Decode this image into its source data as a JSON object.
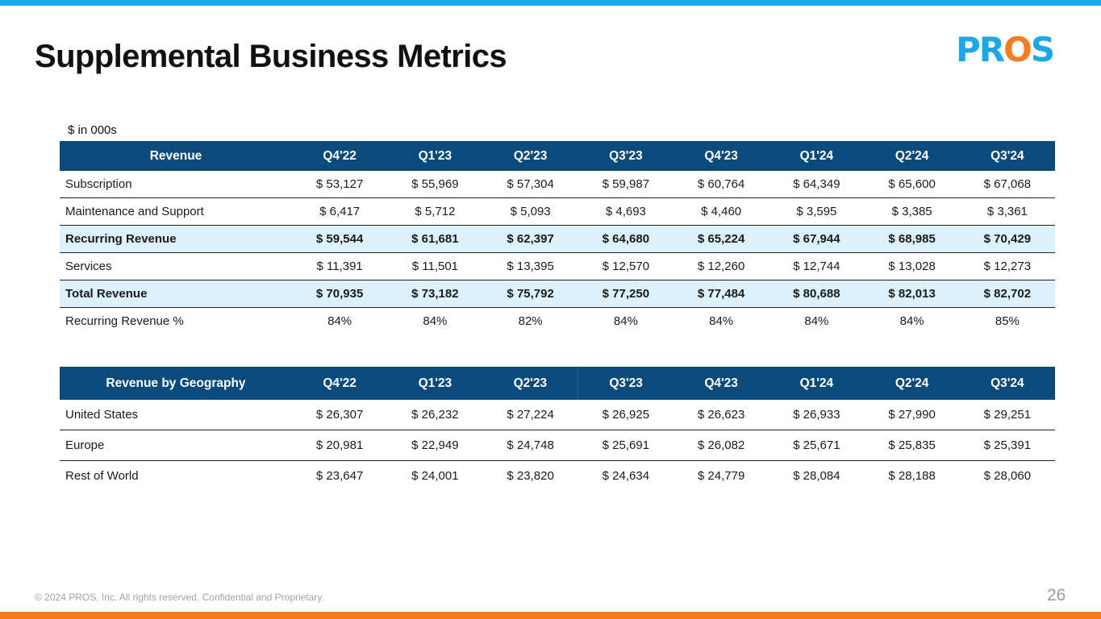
{
  "title": "Supplemental Business Metrics",
  "logo": {
    "text_a": "PR",
    "text_b": "O",
    "text_c": "S"
  },
  "units_note": "$ in 000s",
  "colors": {
    "header_bg": "#0b4a7b",
    "highlight_bg": "#dcf1fc",
    "accent_blue": "#1ea7e6",
    "accent_orange": "#f47b20"
  },
  "revenue_table": {
    "headers": [
      "Revenue",
      "Q4'22",
      "Q1'23",
      "Q2'23",
      "Q3'23",
      "Q4'23",
      "Q1'24",
      "Q2'24",
      "Q3'24"
    ],
    "rows": [
      {
        "cells": [
          "Subscription",
          "$ 53,127",
          "$ 55,969",
          "$ 57,304",
          "$ 59,987",
          "$ 60,764",
          "$ 64,349",
          "$ 65,600",
          "$ 67,068"
        ]
      },
      {
        "cells": [
          "Maintenance and Support",
          "$  6,417",
          "$  5,712",
          "$  5,093",
          "$  4,693",
          "$  4,460",
          "$  3,595",
          "$  3,385",
          "$  3,361"
        ]
      },
      {
        "cells": [
          "Recurring Revenue",
          "$ 59,544",
          "$ 61,681",
          "$ 62,397",
          "$ 64,680",
          "$ 65,224",
          "$ 67,944",
          "$ 68,985",
          "$ 70,429"
        ]
      },
      {
        "cells": [
          "Services",
          "$ 11,391",
          "$ 11,501",
          "$ 13,395",
          "$ 12,570",
          "$ 12,260",
          "$ 12,744",
          "$ 13,028",
          "$ 12,273"
        ]
      },
      {
        "cells": [
          "Total Revenue",
          "$ 70,935",
          "$ 73,182",
          "$ 75,792",
          "$ 77,250",
          "$ 77,484",
          "$ 80,688",
          "$ 82,013",
          "$ 82,702"
        ]
      },
      {
        "cells": [
          "Recurring Revenue %",
          "84%",
          "84%",
          "82%",
          "84%",
          "84%",
          "84%",
          "84%",
          "85%"
        ]
      }
    ]
  },
  "geo_table": {
    "headers": [
      "Revenue by Geography",
      "Q4'22",
      "Q1'23",
      "Q2'23",
      "Q3'23",
      "Q4'23",
      "Q1'24",
      "Q2'24",
      "Q3'24"
    ],
    "rows": [
      {
        "cells": [
          "United States",
          "$ 26,307",
          "$ 26,232",
          "$ 27,224",
          "$ 26,925",
          "$ 26,623",
          "$ 26,933",
          "$ 27,990",
          "$ 29,251"
        ]
      },
      {
        "cells": [
          "Europe",
          "$ 20,981",
          "$ 22,949",
          "$ 24,748",
          "$ 25,691",
          "$ 26,082",
          "$ 25,671",
          "$ 25,835",
          "$ 25,391"
        ]
      },
      {
        "cells": [
          "Rest of World",
          "$ 23,647",
          "$ 24,001",
          "$ 23,820",
          "$ 24,634",
          "$ 24,779",
          "$ 28,084",
          "$ 28,188",
          "$ 28,060"
        ]
      }
    ]
  },
  "footer": "© 2024 PROS, Inc. All rights reserved. Confidential and Proprietary.",
  "page_number": "26"
}
